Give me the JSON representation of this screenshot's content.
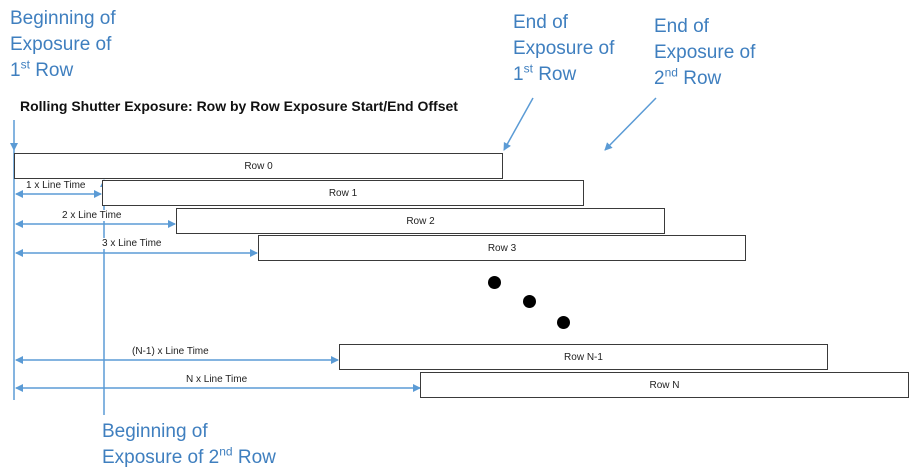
{
  "callouts": {
    "begin_first": {
      "line1": "Beginning of",
      "line2": "Exposure of",
      "ordinal": "1",
      "sup": "st",
      "tail": " Row"
    },
    "end_first": {
      "line1": "End of",
      "line2": "Exposure of",
      "ordinal": "1",
      "sup": "st",
      "tail": " Row"
    },
    "end_second": {
      "line1": "End of",
      "line2": "Exposure of",
      "ordinal": "2",
      "sup": "nd",
      "tail": " Row"
    },
    "begin_second": {
      "line1": "Beginning of",
      "line2_prefix": "Exposure of 2",
      "sup": "nd",
      "tail": " Row"
    }
  },
  "title": "Rolling Shutter Exposure: Row by Row Exposure Start/End Offset",
  "rows": [
    {
      "label": "Row 0"
    },
    {
      "label": "Row 1",
      "offset_label": "1 x Line Time"
    },
    {
      "label": "Row 2",
      "offset_label": "2 x Line Time"
    },
    {
      "label": "Row 3",
      "offset_label": "3 x Line Time"
    },
    {
      "label": "Row N-1",
      "offset_label": "(N-1) x Line Time"
    },
    {
      "label": "Row N",
      "offset_label": "N x Line Time"
    }
  ],
  "colors": {
    "callout": "#3f7fbf",
    "arrow": "#5b9bd5",
    "box_border": "#3a3a3a"
  }
}
